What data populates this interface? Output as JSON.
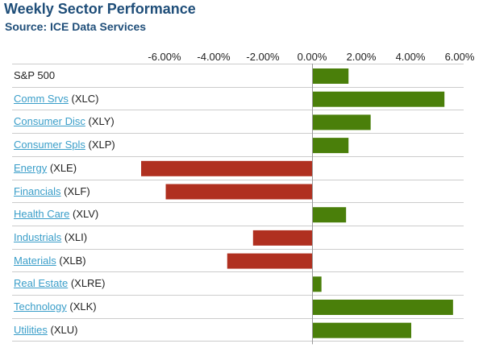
{
  "header": {
    "title": "Weekly Sector Performance",
    "subtitle": "Source: ICE Data Services"
  },
  "colors": {
    "positive": "#4a7f0a",
    "negative": "#b03020",
    "link": "#3a9ec9",
    "title": "#1f4e79",
    "grid": "#cccccc"
  },
  "chart_data": {
    "type": "bar",
    "orientation": "horizontal",
    "title": "Weekly Sector Performance",
    "subtitle": "Source: ICE Data Services",
    "xlim": [
      -6.0,
      6.0
    ],
    "xticks": [
      "-6.00%",
      "-4.00%",
      "-2.00%",
      "0.00%",
      "2.00%",
      "4.00%",
      "6.00%"
    ],
    "tick_values": [
      -6,
      -4,
      -2,
      0,
      2,
      4,
      6
    ],
    "grid": false,
    "rows": [
      {
        "link": "",
        "ticker": "S&P 500",
        "value": 1.45
      },
      {
        "link": "Comm Srvs",
        "ticker": "(XLC)",
        "value": 5.35
      },
      {
        "link": "Consumer Disc",
        "ticker": "(XLY)",
        "value": 2.35
      },
      {
        "link": "Consumer Spls",
        "ticker": "(XLP)",
        "value": 1.45
      },
      {
        "link": "Energy",
        "ticker": "(XLE)",
        "value": -6.95
      },
      {
        "link": "Financials",
        "ticker": "(XLF)",
        "value": -5.95
      },
      {
        "link": "Health Care",
        "ticker": "(XLV)",
        "value": 1.35
      },
      {
        "link": "Industrials",
        "ticker": "(XLI)",
        "value": -2.4
      },
      {
        "link": "Materials",
        "ticker": "(XLB)",
        "value": -3.45
      },
      {
        "link": "Real Estate",
        "ticker": "(XLRE)",
        "value": 0.35
      },
      {
        "link": "Technology",
        "ticker": "(XLK)",
        "value": 5.7
      },
      {
        "link": "Utilities",
        "ticker": "(XLU)",
        "value": 4.0
      }
    ]
  }
}
